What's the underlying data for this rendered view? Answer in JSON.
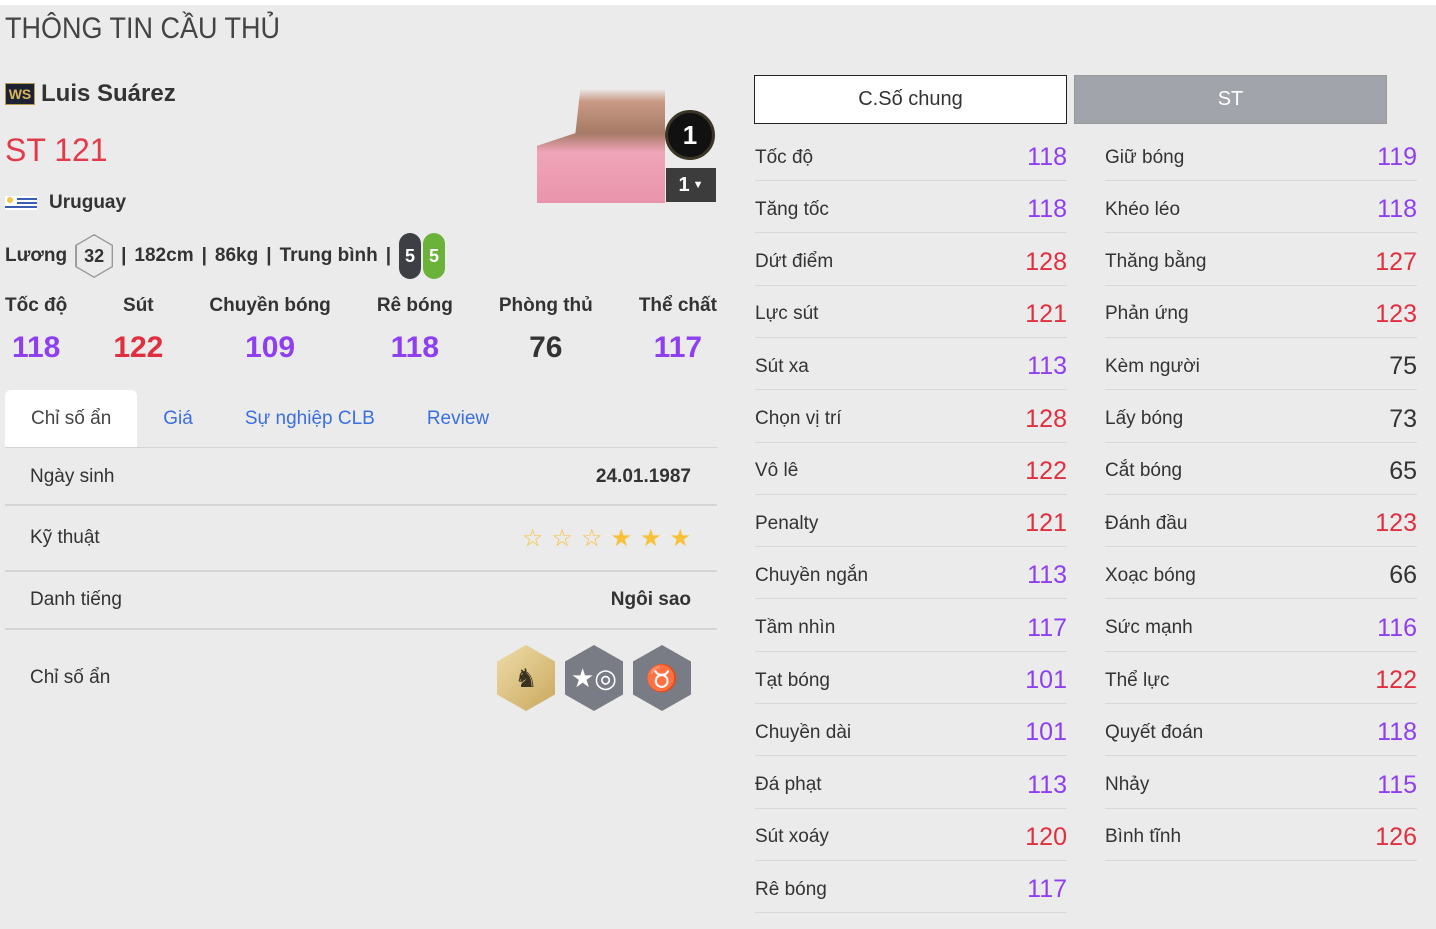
{
  "page_title": "THÔNG TIN CẦU THỦ",
  "player": {
    "season_badge": "WS",
    "name": "Luis Suárez",
    "position_rating": "ST 121",
    "nationality": "Uruguay",
    "salary_label": "Lương",
    "salary": "32",
    "height": "182cm",
    "weight": "86kg",
    "body_type": "Trung bình",
    "left_foot": "5",
    "right_foot": "5",
    "level": "1",
    "level_select": "1"
  },
  "summary": [
    {
      "label": "Tốc độ",
      "value": "118",
      "color": "#8e3ff0"
    },
    {
      "label": "Sút",
      "value": "122",
      "color": "#e0303f"
    },
    {
      "label": "Chuyền bóng",
      "value": "109",
      "color": "#8e3ff0"
    },
    {
      "label": "Rê bóng",
      "value": "118",
      "color": "#8e3ff0"
    },
    {
      "label": "Phòng thủ",
      "value": "76",
      "color": "#333333"
    },
    {
      "label": "Thể chất",
      "value": "117",
      "color": "#8e3ff0"
    }
  ],
  "tabs": [
    "Chỉ số ẩn",
    "Giá",
    "Sự nghiệp CLB",
    "Review"
  ],
  "details": {
    "birth_label": "Ngày sinh",
    "birth": "24.01.1987",
    "skill_label": "Kỹ thuật",
    "skill_stars": 3,
    "skill_max": 6,
    "fame_label": "Danh tiếng",
    "fame": "Ngôi sao",
    "hidden_label": "Chỉ số ẩn",
    "hidden_traits": [
      "knight-horse-icon",
      "boot-spiral-icon",
      "buffalo-icon"
    ]
  },
  "stat_tabs": {
    "general": "C.Số chung",
    "position": "ST"
  },
  "colors": {
    "high": "#e0303f",
    "mid": "#8e3ff0",
    "low": "#333333"
  },
  "stats_left": [
    [
      "Tốc độ",
      "118"
    ],
    [
      "Tăng tốc",
      "118"
    ],
    [
      "Dứt điểm",
      "128"
    ],
    [
      "Lực sút",
      "121"
    ],
    [
      "Sút xa",
      "113"
    ],
    [
      "Chọn vị trí",
      "128"
    ],
    [
      "Vô lê",
      "122"
    ],
    [
      "Penalty",
      "121"
    ],
    [
      "Chuyền ngắn",
      "113"
    ],
    [
      "Tầm nhìn",
      "117"
    ],
    [
      "Tạt bóng",
      "101"
    ],
    [
      "Chuyền dài",
      "101"
    ],
    [
      "Đá phạt",
      "113"
    ],
    [
      "Sút xoáy",
      "120"
    ],
    [
      "Rê bóng",
      "117"
    ]
  ],
  "stats_right": [
    [
      "Giữ bóng",
      "119"
    ],
    [
      "Khéo léo",
      "118"
    ],
    [
      "Thăng bằng",
      "127"
    ],
    [
      "Phản ứng",
      "123"
    ],
    [
      "Kèm người",
      "75"
    ],
    [
      "Lấy bóng",
      "73"
    ],
    [
      "Cắt bóng",
      "65"
    ],
    [
      "Đánh đầu",
      "123"
    ],
    [
      "Xoạc bóng",
      "66"
    ],
    [
      "Sức mạnh",
      "116"
    ],
    [
      "Thể lực",
      "122"
    ],
    [
      "Quyết đoán",
      "118"
    ],
    [
      "Nhảy",
      "115"
    ],
    [
      "Bình tĩnh",
      "126"
    ]
  ]
}
